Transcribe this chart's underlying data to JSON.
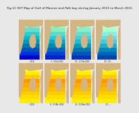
{
  "title": "Fig.11 SST Map of Gulf of Mannar and Palk bay during January 2015 to March 2015",
  "title_fontsize": 3.2,
  "figure_bg": "#e8e8e8",
  "panel_bg": "#b8d8e8",
  "rows": 2,
  "cols": 4,
  "panel_labels": [
    "... 2015",
    "3 - 9 Feb 2015",
    "10 - 17 Feb 2015",
    "18 - 20 ...",
    "... 2015",
    "6 - 13 Mar 2015",
    "14 - 21 Mar 2015",
    "21 - ..."
  ],
  "label_fontsize": 1.8,
  "land_color": "#d4b483",
  "india_land_color": "#c8a870",
  "row0_sst_colors": [
    [
      "#0000cc",
      "#0033dd",
      "#0055bb",
      "#0077aa",
      "#0099bb",
      "#00bbcc",
      "#33cccc",
      "#66ddcc",
      "#99eebb",
      "#bbffaa"
    ],
    [
      "#0022cc",
      "#0044cc",
      "#0066bb",
      "#0088aa",
      "#00aacc",
      "#22ccdd",
      "#55ddcc",
      "#88eebb",
      "#aaffaa",
      "#ccffbb"
    ],
    [
      "#0033bb",
      "#0055bb",
      "#0077aa",
      "#0099bb",
      "#22bbcc",
      "#44ccdd",
      "#66ddcc",
      "#88eecc",
      "#aaffbb",
      "#ccffcc"
    ],
    [
      "#0044aa",
      "#0066bb",
      "#0088bb",
      "#22aacc",
      "#44ccdd",
      "#66dddd",
      "#88eedd",
      "#aaffcc",
      "#ccffdd",
      "#eeffee"
    ]
  ],
  "row1_sst_colors": [
    [
      "#ffee00",
      "#ffdd00",
      "#ffcc00",
      "#ffbb00",
      "#ffaa00",
      "#ff9900",
      "#ffcc00",
      "#ffee00",
      "#ffff44",
      "#ffff88"
    ],
    [
      "#ffee00",
      "#ffdd00",
      "#ffcc00",
      "#ffbb00",
      "#ffaa00",
      "#ff9900",
      "#ffcc00",
      "#ffee00",
      "#ffff44",
      "#ffff88"
    ],
    [
      "#ffee00",
      "#ffdd00",
      "#ffcc00",
      "#ffbb00",
      "#ffaa00",
      "#ff9900",
      "#ffcc00",
      "#ffee00",
      "#ffff44",
      "#ffff88"
    ],
    [
      "#ffee00",
      "#ffdd00",
      "#ffcc00",
      "#ffbb00",
      "#ffaa00",
      "#ff9900",
      "#ffcc00",
      "#ffee00",
      "#ffff44",
      "#ffff88"
    ]
  ]
}
